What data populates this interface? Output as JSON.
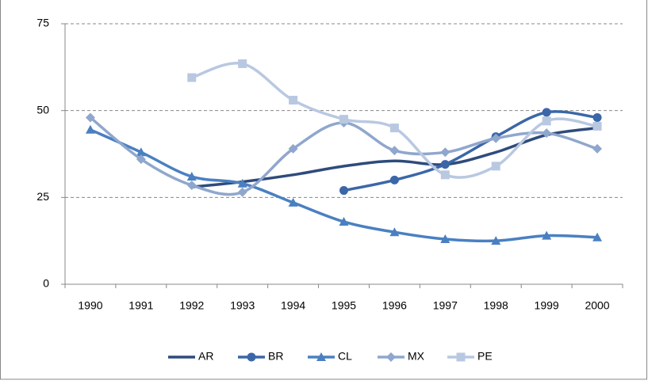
{
  "chart_data": {
    "type": "line",
    "categories": [
      "1990",
      "1991",
      "1992",
      "1993",
      "1994",
      "1995",
      "1996",
      "1997",
      "1998",
      "1999",
      "2000"
    ],
    "series": [
      {
        "name": "AR",
        "color": "#2f4b7c",
        "marker": "none",
        "values": [
          null,
          null,
          28,
          29.5,
          31.5,
          34,
          35.5,
          34.5,
          38,
          43,
          45
        ]
      },
      {
        "name": "BR",
        "color": "#3b67a8",
        "marker": "circle",
        "values": [
          null,
          null,
          null,
          null,
          null,
          27,
          30,
          34.5,
          42.5,
          49.5,
          48
        ]
      },
      {
        "name": "CL",
        "color": "#4a80c1",
        "marker": "triangle",
        "values": [
          44.5,
          38,
          31,
          29,
          23.5,
          18,
          15,
          13,
          12.5,
          14,
          13.5
        ]
      },
      {
        "name": "MX",
        "color": "#8fa7cd",
        "marker": "diamond",
        "values": [
          48,
          36,
          28.5,
          26.5,
          39,
          46.5,
          38.5,
          38,
          42,
          43.5,
          39
        ]
      },
      {
        "name": "PE",
        "color": "#b9c8e1",
        "marker": "square",
        "values": [
          null,
          null,
          59.5,
          63.5,
          53,
          47.5,
          45,
          31.5,
          34,
          47,
          45.5
        ]
      }
    ],
    "ylim": [
      0,
      75
    ],
    "yticks": [
      0,
      25,
      50,
      75
    ],
    "grid": true,
    "smooth": true,
    "legend": "bottom"
  }
}
